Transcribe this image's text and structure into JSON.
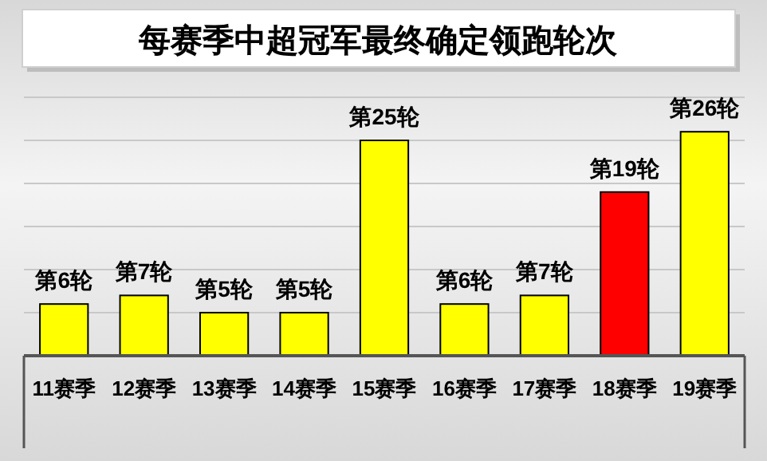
{
  "chart_data": {
    "type": "bar",
    "title": "每赛季中超冠军最终确定领跑轮次",
    "categories": [
      "11赛季",
      "12赛季",
      "13赛季",
      "14赛季",
      "15赛季",
      "16赛季",
      "17赛季",
      "18赛季",
      "19赛季"
    ],
    "values": [
      6,
      7,
      5,
      5,
      25,
      6,
      7,
      19,
      26
    ],
    "colors": [
      "#ffff00",
      "#ffff00",
      "#ffff00",
      "#ffff00",
      "#ffff00",
      "#ffff00",
      "#ffff00",
      "#ff0000",
      "#ffff00"
    ],
    "value_labels": [
      "第6轮",
      "第7轮",
      "第5轮",
      "第5轮",
      "第25轮",
      "第6轮",
      "第7轮",
      "第19轮",
      "第26轮"
    ],
    "ylim": [
      0,
      30
    ],
    "yticks": [
      {
        "value": 0,
        "label": null
      },
      {
        "value": 5,
        "label": null
      },
      {
        "value": 10,
        "label": null
      },
      {
        "value": 15,
        "label": null
      },
      {
        "value": 20,
        "label": null
      },
      {
        "value": 25,
        "label": null
      },
      {
        "value": 30,
        "label": null
      }
    ],
    "grid": "y",
    "tick_labels": "x"
  }
}
